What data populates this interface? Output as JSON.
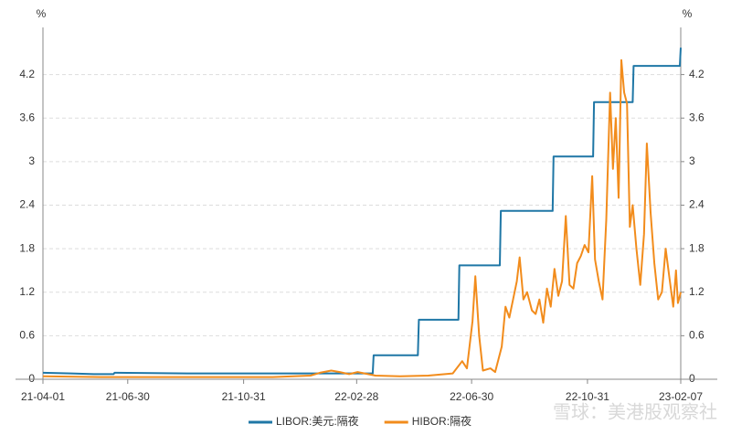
{
  "chart_data": {
    "type": "line",
    "y_label": "%",
    "y2_label": "%",
    "watermark": "雪球：美港股观察社",
    "xlim": [
      "21-04-01",
      "23-02-07"
    ],
    "xticks": [
      "21-04-01",
      "21-06-30",
      "21-10-31",
      "22-02-28",
      "22-06-30",
      "22-10-31",
      "23-02-07"
    ],
    "ylim": [
      0,
      4.85
    ],
    "yticks": [
      0,
      0.6,
      1.2,
      1.8,
      2.4,
      3,
      3.6,
      4.2
    ],
    "y2lim": [
      0,
      4.85
    ],
    "y2ticks": [
      0,
      0.6,
      1.2,
      1.8,
      2.4,
      3,
      3.6,
      4.2
    ],
    "grid": true,
    "legend": "bottom",
    "series": [
      {
        "name": "LIBOR:美元:隔夜",
        "color": "#1f77a6",
        "x": [
          "21-04-01",
          "21-05-01",
          "21-05-25",
          "21-06-15",
          "21-06-16",
          "21-09-01",
          "21-12-01",
          "22-01-15",
          "22-03-17",
          "22-03-18",
          "22-05-04",
          "22-05-05",
          "22-06-16",
          "22-06-17",
          "22-07-30",
          "22-07-31",
          "22-09-24",
          "22-09-25",
          "22-11-06",
          "22-11-07",
          "22-12-18",
          "22-12-19",
          "23-02-05",
          "23-02-06",
          "23-02-07"
        ],
        "values": [
          0.09,
          0.08,
          0.07,
          0.07,
          0.09,
          0.08,
          0.08,
          0.08,
          0.08,
          0.33,
          0.33,
          0.82,
          0.82,
          1.57,
          1.57,
          2.32,
          2.32,
          3.07,
          3.07,
          3.82,
          3.82,
          4.32,
          4.32,
          4.32,
          4.57
        ]
      },
      {
        "name": "HIBOR:隔夜",
        "color": "#f28c1c",
        "x": [
          "21-04-01",
          "21-06-01",
          "21-09-01",
          "21-12-01",
          "22-01-10",
          "22-01-20",
          "22-02-01",
          "22-02-10",
          "22-02-20",
          "22-03-01",
          "22-03-20",
          "22-04-15",
          "22-05-15",
          "22-06-10",
          "22-06-20",
          "22-06-25",
          "22-07-01",
          "22-07-04",
          "22-07-08",
          "22-07-12",
          "22-07-20",
          "22-07-25",
          "22-08-01",
          "22-08-05",
          "22-08-09",
          "22-08-13",
          "22-08-17",
          "22-08-20",
          "22-08-24",
          "22-08-28",
          "22-09-02",
          "22-09-06",
          "22-09-10",
          "22-09-14",
          "22-09-18",
          "22-09-22",
          "22-09-26",
          "22-09-30",
          "22-10-04",
          "22-10-08",
          "22-10-12",
          "22-10-16",
          "22-10-20",
          "22-10-24",
          "22-10-28",
          "22-11-01",
          "22-11-05",
          "22-11-08",
          "22-11-12",
          "22-11-16",
          "22-11-20",
          "22-11-24",
          "22-11-27",
          "22-11-30",
          "22-12-03",
          "22-12-06",
          "22-12-09",
          "22-12-12",
          "22-12-15",
          "22-12-18",
          "22-12-22",
          "22-12-26",
          "22-12-30",
          "23-01-02",
          "23-01-06",
          "23-01-10",
          "23-01-14",
          "23-01-18",
          "23-01-22",
          "23-01-26",
          "23-01-30",
          "23-02-02",
          "23-02-04",
          "23-02-07"
        ],
        "values": [
          0.04,
          0.03,
          0.03,
          0.03,
          0.05,
          0.09,
          0.12,
          0.1,
          0.07,
          0.1,
          0.05,
          0.04,
          0.05,
          0.08,
          0.25,
          0.15,
          0.8,
          1.42,
          0.6,
          0.12,
          0.15,
          0.1,
          0.45,
          1.0,
          0.85,
          1.1,
          1.35,
          1.68,
          1.1,
          1.2,
          0.95,
          0.9,
          1.1,
          0.78,
          1.25,
          1.0,
          1.52,
          1.15,
          1.35,
          2.25,
          1.3,
          1.25,
          1.6,
          1.7,
          1.85,
          1.75,
          2.8,
          1.65,
          1.35,
          1.1,
          2.2,
          3.95,
          2.9,
          3.6,
          2.5,
          4.4,
          3.95,
          3.8,
          2.1,
          2.4,
          1.8,
          1.3,
          2.0,
          3.25,
          2.3,
          1.6,
          1.1,
          1.2,
          1.8,
          1.4,
          1.0,
          1.5,
          1.05,
          1.2
        ]
      }
    ]
  }
}
